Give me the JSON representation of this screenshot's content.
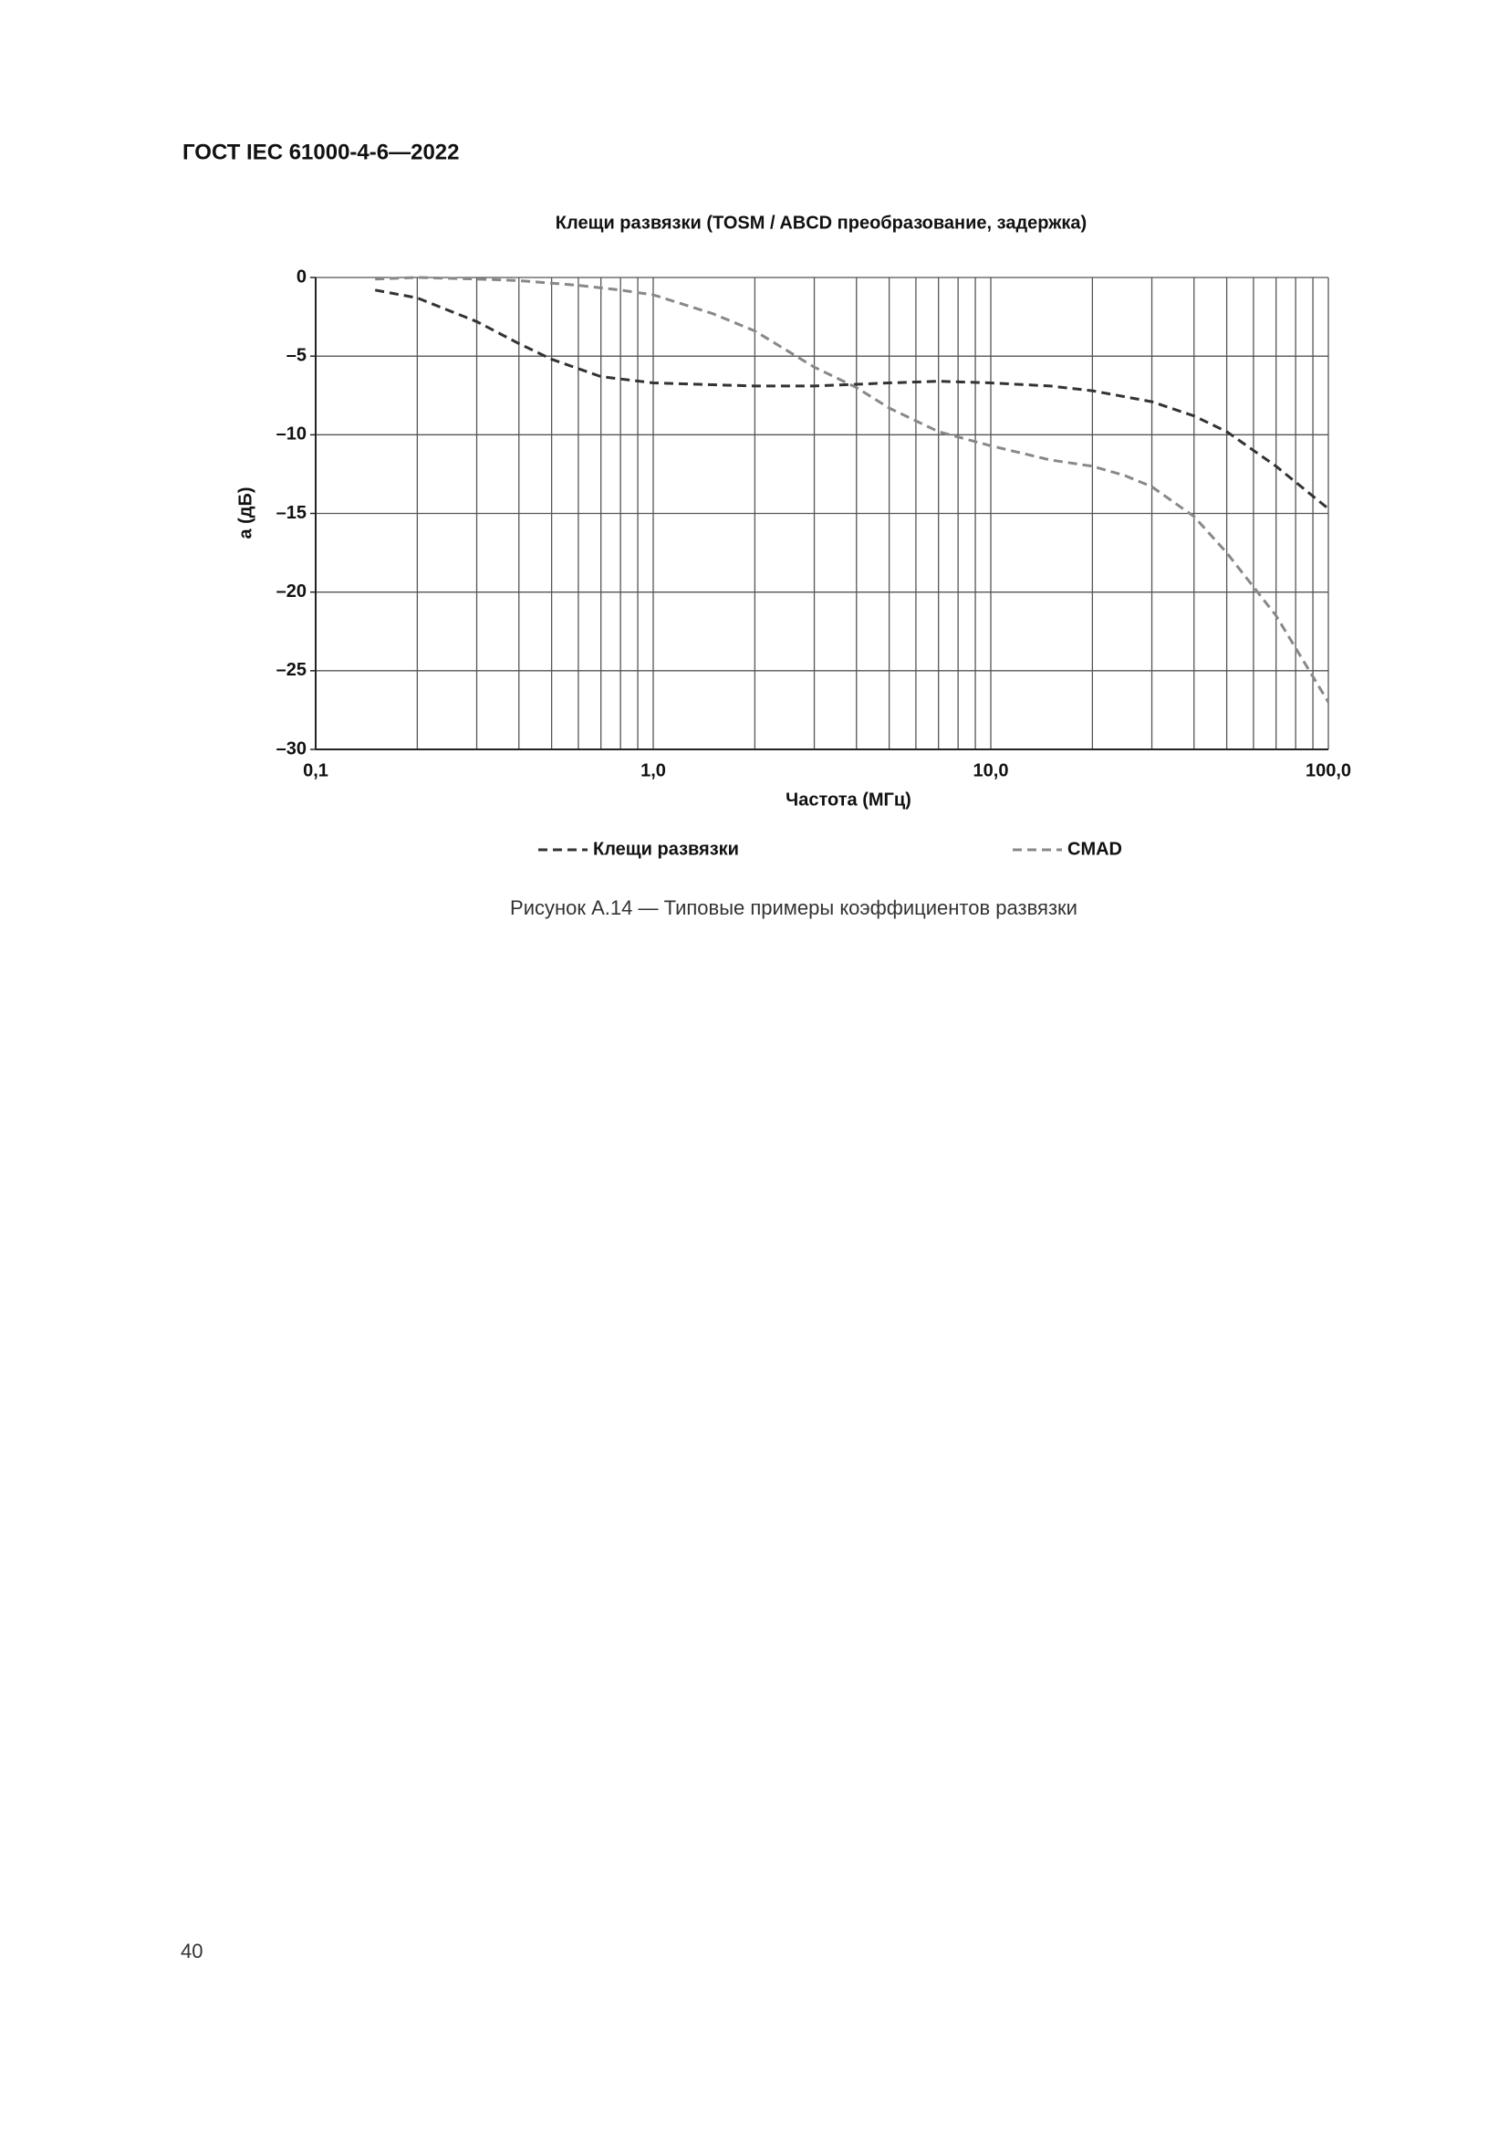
{
  "header": "ГОСТ IEC 61000-4-6—2022",
  "chart_data": {
    "type": "line",
    "title": "Клещи развязки (TOSM / ABCD преобразование, задержка)",
    "x_label": "Частота   (МГц)",
    "y_label": "a  (дБ)",
    "xscale": "log",
    "grid": true,
    "xlim": [
      0.1,
      100
    ],
    "ylim": [
      -30,
      0
    ],
    "xticks": [
      {
        "value": 0.1,
        "label": "0,1"
      },
      {
        "value": 1,
        "label": "1,0"
      },
      {
        "value": 10,
        "label": "10,0"
      },
      {
        "value": 100,
        "label": "100,0"
      }
    ],
    "yticks": [
      0,
      {
        "value": -5,
        "label": "–5"
      },
      {
        "value": -10,
        "label": "–10"
      },
      {
        "value": -15,
        "label": "–15"
      },
      {
        "value": -20,
        "label": "–20"
      },
      {
        "value": -25,
        "label": "–25"
      },
      {
        "value": -30,
        "label": "–30"
      }
    ],
    "series": [
      {
        "name": "Клещи развязки",
        "color": "#333333",
        "x": [
          0.15,
          0.2,
          0.3,
          0.4,
          0.5,
          0.7,
          1,
          2,
          3,
          5,
          7,
          10,
          15,
          20,
          30,
          40,
          50,
          70,
          100
        ],
        "values": [
          -0.8,
          -1.3,
          -2.8,
          -4.2,
          -5.2,
          -6.3,
          -6.7,
          -6.9,
          -6.9,
          -6.7,
          -6.6,
          -6.7,
          -6.9,
          -7.2,
          -7.9,
          -8.8,
          -9.8,
          -12,
          -14.7
        ]
      },
      {
        "name": "CMAD",
        "color": "#888888",
        "x": [
          0.15,
          0.2,
          0.3,
          0.4,
          0.6,
          0.8,
          1,
          1.5,
          2,
          3,
          4,
          5,
          7,
          10,
          15,
          20,
          25,
          30,
          40,
          50,
          70,
          100
        ],
        "values": [
          -0.1,
          0,
          -0.1,
          -0.2,
          -0.5,
          -0.8,
          -1.1,
          -2.3,
          -3.4,
          -5.7,
          -7,
          -8.3,
          -9.8,
          -10.7,
          -11.6,
          -12,
          -12.6,
          -13.3,
          -15.2,
          -17.5,
          -21.5,
          -27
        ]
      }
    ]
  },
  "caption": "Рисунок А.14 — Типовые примеры коэффициентов развязки",
  "page_number": "40"
}
